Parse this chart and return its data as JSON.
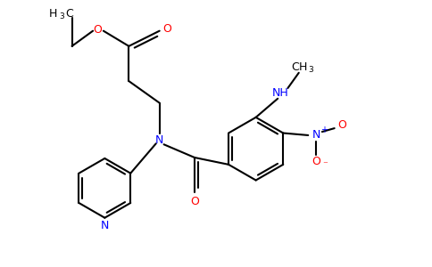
{
  "background_color": "#ffffff",
  "bond_color": "#000000",
  "N_color": "#0000ff",
  "O_color": "#ff0000",
  "bond_width": 1.5,
  "figsize": [
    4.84,
    3.0
  ],
  "dpi": 100,
  "xlim": [
    0,
    9.68
  ],
  "ylim": [
    0,
    6.0
  ]
}
